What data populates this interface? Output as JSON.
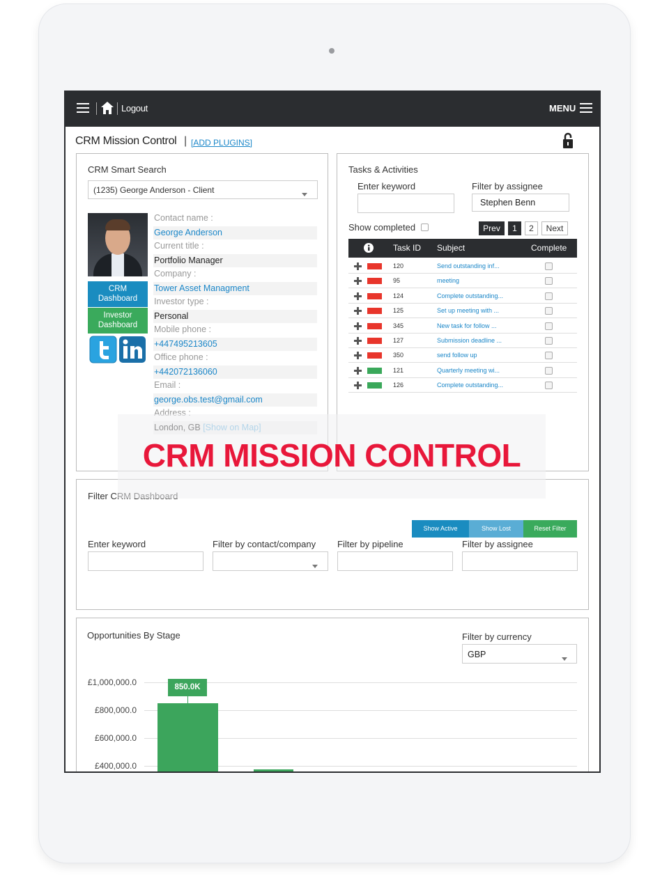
{
  "top_bar": {
    "logout": "Logout",
    "menu": "MENU"
  },
  "page": {
    "title": "CRM Mission Control",
    "separator": "|",
    "add_plugins": "[ADD PLUGINS]"
  },
  "smart_search": {
    "title": "CRM Smart Search",
    "selected": "(1235) George Anderson - Client",
    "buttons": [
      "CRM Dashboard",
      "Investor Dashboard"
    ],
    "fields": [
      {
        "label": "Contact name :",
        "value": "George Anderson",
        "link": true
      },
      {
        "label": "Current title :",
        "value": "Portfolio Manager",
        "link": false
      },
      {
        "label": "Company :",
        "value": "Tower Asset Managment",
        "link": true
      },
      {
        "label": "Investor type :",
        "value": "Personal",
        "link": false
      },
      {
        "label": "Mobile phone :",
        "value": "+447495213605",
        "link": true
      },
      {
        "label": "Office phone :",
        "value": "+442072136060",
        "link": true
      },
      {
        "label": "Email :",
        "value": "george.obs.test@gmail.com",
        "link": true
      },
      {
        "label": "Address :",
        "value": "London, GB",
        "extra": "[Show on Map]",
        "link": false
      }
    ]
  },
  "tasks": {
    "title": "Tasks & Activities",
    "keyword_label": "Enter keyword",
    "assignee_label": "Filter by assignee",
    "assignee": "Stephen Benn",
    "show_completed": "Show completed",
    "pages": [
      "Prev",
      "1",
      "2",
      "Next"
    ],
    "columns": [
      "Task ID",
      "Subject",
      "Complete"
    ],
    "rows": [
      {
        "id": 120,
        "status_color": "#e8352b",
        "subject": "Send outstanding inf..."
      },
      {
        "id": 95,
        "status_color": "#e8352b",
        "subject": "meeting"
      },
      {
        "id": 124,
        "status_color": "#e8352b",
        "subject": "Complete outstanding..."
      },
      {
        "id": 125,
        "status_color": "#e8352b",
        "subject": "Set up meeting with ..."
      },
      {
        "id": 345,
        "status_color": "#e8352b",
        "subject": "New task for follow ..."
      },
      {
        "id": 127,
        "status_color": "#e8352b",
        "subject": "Submission deadline ..."
      },
      {
        "id": 350,
        "status_color": "#e8352b",
        "subject": "send follow up"
      },
      {
        "id": 121,
        "status_color": "#3aa85a",
        "subject": "Quarterly meeting wi..."
      },
      {
        "id": 126,
        "status_color": "#3aa85a",
        "subject": "Complete outstanding..."
      }
    ]
  },
  "overlay": {
    "banner": "CRM MISSION CONTROL"
  },
  "filter_panel": {
    "title": "Filter CRM Dashboard",
    "buttons": [
      {
        "text": "Show Active",
        "color": "#1a8cc0"
      },
      {
        "text": "Show Lost",
        "color": "#5aadd5"
      },
      {
        "text": "Reset Filter",
        "color": "#3aaa5c"
      }
    ],
    "fields": [
      "Enter keyword",
      "Filter by contact/company",
      "Filter by pipeline",
      "Filter by assignee"
    ]
  },
  "opportunities_panel": {
    "currency_label": "Filter by currency",
    "currency": "GBP"
  },
  "chart_data": {
    "type": "bar",
    "title": "Opportunities By Stage",
    "categories": [
      null,
      null
    ],
    "values": [
      850000,
      375000
    ],
    "value_labels": [
      "850.0K",
      null
    ],
    "color": "#3ca55c",
    "ylim": [
      0,
      1000000
    ],
    "yticks": [
      {
        "value": 1000000,
        "label": "£1,000,000.0"
      },
      {
        "value": 800000,
        "label": "£800,000.0"
      },
      {
        "value": 600000,
        "label": "£600,000.0"
      },
      {
        "value": 400000,
        "label": "£400,000.0"
      }
    ],
    "grid": true
  }
}
